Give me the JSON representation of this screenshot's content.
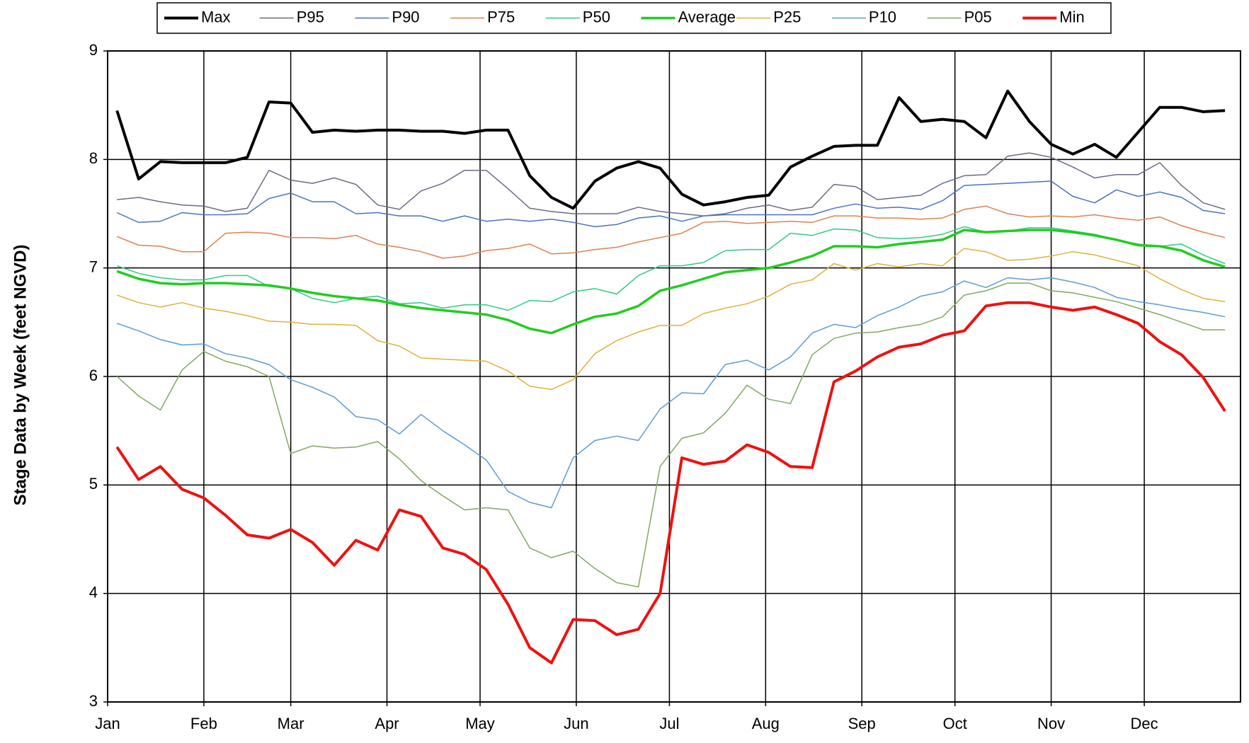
{
  "chart_data": {
    "type": "line",
    "y_label": "Stage Data by Week (feet NGVD)",
    "xlim": [
      0,
      365
    ],
    "ylim": [
      3,
      9
    ],
    "yticks": [
      3,
      4,
      5,
      6,
      7,
      8,
      9
    ],
    "xticks": [
      {
        "value": 0,
        "label": "Jan"
      },
      {
        "value": 31,
        "label": "Feb"
      },
      {
        "value": 59,
        "label": "Mar"
      },
      {
        "value": 90,
        "label": "Apr"
      },
      {
        "value": 120,
        "label": "May"
      },
      {
        "value": 151,
        "label": "Jun"
      },
      {
        "value": 181,
        "label": "Jul"
      },
      {
        "value": 212,
        "label": "Aug"
      },
      {
        "value": 243,
        "label": "Sep"
      },
      {
        "value": 273,
        "label": "Oct"
      },
      {
        "value": 304,
        "label": "Nov"
      },
      {
        "value": 334,
        "label": "Dec"
      }
    ],
    "grid": true,
    "legend": "top",
    "x": [
      3,
      10,
      17,
      24,
      31,
      38,
      45,
      52,
      59,
      66,
      73,
      80,
      87,
      94,
      101,
      108,
      115,
      122,
      129,
      136,
      143,
      150,
      157,
      164,
      171,
      178,
      185,
      192,
      199,
      206,
      213,
      220,
      227,
      234,
      241,
      248,
      255,
      262,
      269,
      276,
      283,
      290,
      297,
      304,
      311,
      318,
      325,
      332,
      339,
      346,
      353,
      360
    ],
    "series": [
      {
        "name": "Max",
        "color": "#000000",
        "width": 4,
        "values": [
          8.45,
          7.82,
          7.98,
          7.97,
          7.97,
          7.97,
          8.02,
          8.53,
          8.52,
          8.25,
          8.27,
          8.26,
          8.27,
          8.27,
          8.26,
          8.26,
          8.24,
          8.27,
          8.27,
          7.85,
          7.65,
          7.55,
          7.8,
          7.92,
          7.98,
          7.92,
          7.68,
          7.58,
          7.61,
          7.65,
          7.67,
          7.93,
          8.03,
          8.12,
          8.13,
          8.13,
          8.57,
          8.35,
          8.37,
          8.35,
          8.2,
          8.63,
          8.35,
          8.14,
          8.05,
          8.14,
          8.02,
          8.25,
          8.48,
          8.48,
          8.44,
          8.45
        ]
      },
      {
        "name": "P95",
        "color": "#6b6b85",
        "width": 1.5,
        "values": [
          7.63,
          7.65,
          7.61,
          7.58,
          7.57,
          7.52,
          7.55,
          7.9,
          7.81,
          7.78,
          7.83,
          7.77,
          7.58,
          7.54,
          7.71,
          7.78,
          7.9,
          7.9,
          7.73,
          7.55,
          7.52,
          7.5,
          7.5,
          7.5,
          7.56,
          7.52,
          7.5,
          7.48,
          7.5,
          7.55,
          7.58,
          7.53,
          7.56,
          7.77,
          7.75,
          7.63,
          7.65,
          7.67,
          7.78,
          7.85,
          7.86,
          8.03,
          8.06,
          8.02,
          7.93,
          7.83,
          7.86,
          7.86,
          7.97,
          7.76,
          7.6,
          7.54
        ]
      },
      {
        "name": "P90",
        "color": "#4a72c0",
        "width": 1.5,
        "values": [
          7.51,
          7.42,
          7.43,
          7.51,
          7.49,
          7.49,
          7.5,
          7.64,
          7.69,
          7.61,
          7.61,
          7.5,
          7.51,
          7.48,
          7.48,
          7.43,
          7.48,
          7.43,
          7.45,
          7.43,
          7.45,
          7.42,
          7.38,
          7.4,
          7.46,
          7.48,
          7.43,
          7.48,
          7.49,
          7.49,
          7.49,
          7.49,
          7.49,
          7.55,
          7.59,
          7.55,
          7.56,
          7.54,
          7.62,
          7.76,
          7.77,
          7.78,
          7.79,
          7.8,
          7.66,
          7.6,
          7.72,
          7.66,
          7.7,
          7.65,
          7.53,
          7.5
        ]
      },
      {
        "name": "P75",
        "color": "#e0804f",
        "width": 1.5,
        "values": [
          7.29,
          7.21,
          7.2,
          7.15,
          7.15,
          7.32,
          7.33,
          7.32,
          7.28,
          7.28,
          7.27,
          7.3,
          7.22,
          7.19,
          7.15,
          7.09,
          7.11,
          7.16,
          7.18,
          7.22,
          7.13,
          7.14,
          7.17,
          7.19,
          7.24,
          7.28,
          7.32,
          7.42,
          7.43,
          7.41,
          7.42,
          7.43,
          7.42,
          7.48,
          7.48,
          7.46,
          7.46,
          7.45,
          7.46,
          7.54,
          7.57,
          7.5,
          7.47,
          7.48,
          7.47,
          7.49,
          7.46,
          7.44,
          7.47,
          7.39,
          7.33,
          7.28
        ]
      },
      {
        "name": "P50",
        "color": "#2ecc85",
        "width": 1.5,
        "values": [
          7.02,
          6.95,
          6.91,
          6.89,
          6.89,
          6.93,
          6.93,
          6.83,
          6.81,
          6.72,
          6.68,
          6.72,
          6.74,
          6.67,
          6.68,
          6.63,
          6.66,
          6.66,
          6.61,
          6.7,
          6.69,
          6.78,
          6.81,
          6.76,
          6.93,
          7.02,
          7.02,
          7.05,
          7.16,
          7.17,
          7.17,
          7.32,
          7.3,
          7.36,
          7.35,
          7.28,
          7.27,
          7.28,
          7.31,
          7.38,
          7.33,
          7.34,
          7.37,
          7.37,
          7.34,
          7.31,
          7.26,
          7.22,
          7.2,
          7.22,
          7.12,
          7.04
        ]
      },
      {
        "name": "Average",
        "color": "#22cc22",
        "width": 3.5,
        "values": [
          6.97,
          6.9,
          6.86,
          6.85,
          6.86,
          6.86,
          6.85,
          6.84,
          6.81,
          6.77,
          6.74,
          6.72,
          6.7,
          6.66,
          6.63,
          6.61,
          6.59,
          6.57,
          6.52,
          6.44,
          6.4,
          6.48,
          6.55,
          6.58,
          6.65,
          6.79,
          6.84,
          6.9,
          6.96,
          6.98,
          7.0,
          7.05,
          7.11,
          7.2,
          7.2,
          7.19,
          7.22,
          7.24,
          7.26,
          7.35,
          7.33,
          7.34,
          7.35,
          7.35,
          7.33,
          7.3,
          7.26,
          7.21,
          7.2,
          7.16,
          7.07,
          7.01
        ]
      },
      {
        "name": "P25",
        "color": "#e0b040",
        "width": 1.5,
        "values": [
          6.75,
          6.68,
          6.64,
          6.68,
          6.63,
          6.6,
          6.56,
          6.51,
          6.5,
          6.48,
          6.48,
          6.47,
          6.33,
          6.28,
          6.17,
          6.16,
          6.15,
          6.14,
          6.05,
          5.91,
          5.88,
          5.97,
          6.21,
          6.33,
          6.41,
          6.47,
          6.47,
          6.58,
          6.63,
          6.67,
          6.74,
          6.85,
          6.89,
          7.04,
          6.98,
          7.04,
          7.01,
          7.04,
          7.02,
          7.18,
          7.15,
          7.07,
          7.08,
          7.11,
          7.15,
          7.12,
          7.07,
          7.02,
          6.9,
          6.8,
          6.72,
          6.69
        ]
      },
      {
        "name": "P10",
        "color": "#5b9bd5",
        "width": 1.5,
        "values": [
          6.49,
          6.42,
          6.34,
          6.29,
          6.3,
          6.21,
          6.17,
          6.11,
          5.97,
          5.9,
          5.81,
          5.63,
          5.6,
          5.47,
          5.65,
          5.5,
          5.37,
          5.23,
          4.94,
          4.84,
          4.79,
          5.25,
          5.41,
          5.45,
          5.41,
          5.7,
          5.85,
          5.84,
          6.11,
          6.15,
          6.06,
          6.18,
          6.4,
          6.48,
          6.45,
          6.56,
          6.64,
          6.74,
          6.78,
          6.88,
          6.82,
          6.91,
          6.89,
          6.91,
          6.87,
          6.82,
          6.73,
          6.69,
          6.66,
          6.62,
          6.59,
          6.55
        ]
      },
      {
        "name": "P05",
        "color": "#80a860",
        "width": 1.5,
        "values": [
          6.0,
          5.82,
          5.69,
          6.06,
          6.23,
          6.14,
          6.09,
          6.0,
          5.29,
          5.36,
          5.34,
          5.35,
          5.4,
          5.24,
          5.04,
          4.9,
          4.77,
          4.79,
          4.77,
          4.42,
          4.33,
          4.39,
          4.23,
          4.1,
          4.06,
          5.17,
          5.43,
          5.48,
          5.66,
          5.92,
          5.79,
          5.75,
          6.2,
          6.35,
          6.4,
          6.41,
          6.45,
          6.48,
          6.55,
          6.75,
          6.79,
          6.86,
          6.86,
          6.79,
          6.77,
          6.73,
          6.69,
          6.63,
          6.57,
          6.5,
          6.43,
          6.43
        ]
      },
      {
        "name": "Min",
        "color": "#ee1111",
        "width": 4,
        "values": [
          5.35,
          5.05,
          5.17,
          4.96,
          4.88,
          4.72,
          4.54,
          4.51,
          4.59,
          4.47,
          4.26,
          4.49,
          4.4,
          4.77,
          4.71,
          4.42,
          4.36,
          4.22,
          3.9,
          3.5,
          3.36,
          3.76,
          3.75,
          3.62,
          3.67,
          4.0,
          5.25,
          5.19,
          5.22,
          5.37,
          5.3,
          5.17,
          5.16,
          5.95,
          6.05,
          6.18,
          6.27,
          6.3,
          6.38,
          6.42,
          6.65,
          6.68,
          6.68,
          6.64,
          6.61,
          6.64,
          6.57,
          6.49,
          6.32,
          6.2,
          5.99,
          5.68
        ]
      }
    ]
  }
}
